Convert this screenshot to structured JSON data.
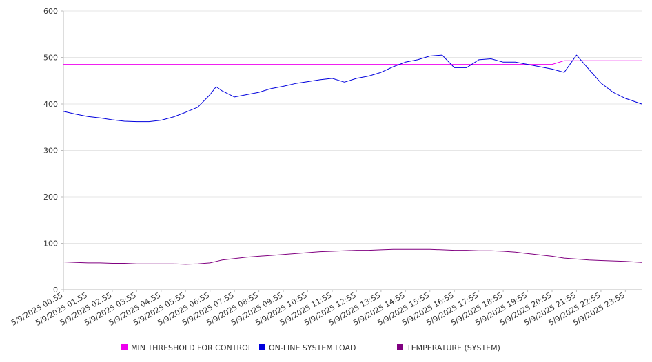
{
  "chart_data": {
    "type": "line",
    "title": "",
    "xlabel": "",
    "ylabel": "",
    "ylim": [
      0,
      600
    ],
    "yticks": [
      0,
      100,
      200,
      300,
      400,
      500,
      600
    ],
    "grid": true,
    "legend_position": "bottom",
    "x_tick_labels": [
      "5/9/2025 00:55",
      "5/9/2025 01:55",
      "5/9/2025 02:55",
      "5/9/2025 03:55",
      "5/9/2025 04:55",
      "5/9/2025 05:55",
      "5/9/2025 06:55",
      "5/9/2025 07:55",
      "5/9/2025 08:55",
      "5/9/2025 09:55",
      "5/9/2025 10:55",
      "5/9/2025 11:55",
      "5/9/2025 12:55",
      "5/9/2025 13:55",
      "5/9/2025 14:55",
      "5/9/2025 15:55",
      "5/9/2025 16:55",
      "5/9/2025 17:55",
      "5/9/2025 18:55",
      "5/9/2025 19:55",
      "5/9/2025 20:55",
      "5/9/2025 21:55",
      "5/9/2025 22:55",
      "5/9/2025 23:55"
    ],
    "x": [
      "5/9/2025 00:55",
      "5/9/2025 01:25",
      "5/9/2025 01:55",
      "5/9/2025 02:25",
      "5/9/2025 02:55",
      "5/9/2025 03:25",
      "5/9/2025 03:55",
      "5/9/2025 04:25",
      "5/9/2025 04:55",
      "5/9/2025 05:25",
      "5/9/2025 05:55",
      "5/9/2025 06:25",
      "5/9/2025 06:55",
      "5/9/2025 07:10",
      "5/9/2025 07:25",
      "5/9/2025 07:55",
      "5/9/2025 08:25",
      "5/9/2025 08:55",
      "5/9/2025 09:25",
      "5/9/2025 09:55",
      "5/9/2025 10:25",
      "5/9/2025 10:55",
      "5/9/2025 11:25",
      "5/9/2025 11:55",
      "5/9/2025 12:25",
      "5/9/2025 12:55",
      "5/9/2025 13:25",
      "5/9/2025 13:55",
      "5/9/2025 14:25",
      "5/9/2025 14:55",
      "5/9/2025 15:25",
      "5/9/2025 15:55",
      "5/9/2025 16:25",
      "5/9/2025 16:55",
      "5/9/2025 17:25",
      "5/9/2025 17:55",
      "5/9/2025 18:25",
      "5/9/2025 18:55",
      "5/9/2025 19:25",
      "5/9/2025 19:55",
      "5/9/2025 20:25",
      "5/9/2025 20:55",
      "5/9/2025 21:25",
      "5/9/2025 21:55",
      "5/9/2025 22:25",
      "5/9/2025 22:55",
      "5/9/2025 23:25",
      "5/9/2025 23:55",
      "5/10/2025 00:35"
    ],
    "series": [
      {
        "name": "MIN THRESHOLD FOR CONTROL",
        "color": "#ee00ee",
        "values": [
          485,
          485,
          485,
          485,
          485,
          485,
          485,
          485,
          485,
          485,
          485,
          485,
          485,
          485,
          485,
          485,
          485,
          485,
          485,
          485,
          485,
          485,
          485,
          485,
          485,
          485,
          485,
          485,
          485,
          485,
          485,
          485,
          485,
          485,
          485,
          485,
          485,
          485,
          485,
          485,
          485,
          485,
          493,
          493,
          493,
          493,
          493,
          493,
          493
        ]
      },
      {
        "name": "ON-LINE SYSTEM LOAD",
        "color": "#0000dd",
        "values": [
          384,
          378,
          373,
          370,
          366,
          363,
          362,
          362,
          365,
          372,
          382,
          393,
          420,
          437,
          428,
          415,
          420,
          425,
          433,
          438,
          444,
          448,
          452,
          455,
          447,
          455,
          460,
          468,
          480,
          490,
          495,
          503,
          505,
          478,
          478,
          495,
          497,
          490,
          490,
          485,
          480,
          475,
          468,
          505,
          475,
          445,
          425,
          412,
          400
        ]
      },
      {
        "name": "TEMPERATURE (SYSTEM)",
        "color": "#800080",
        "values": [
          60,
          59,
          58,
          58,
          57,
          57,
          56,
          56,
          56,
          56,
          55,
          56,
          58,
          61,
          64,
          67,
          70,
          72,
          74,
          76,
          78,
          80,
          82,
          83,
          84,
          85,
          85,
          86,
          87,
          87,
          87,
          87,
          86,
          85,
          85,
          84,
          84,
          83,
          81,
          78,
          75,
          72,
          68,
          66,
          64,
          63,
          62,
          61,
          59
        ]
      }
    ]
  }
}
